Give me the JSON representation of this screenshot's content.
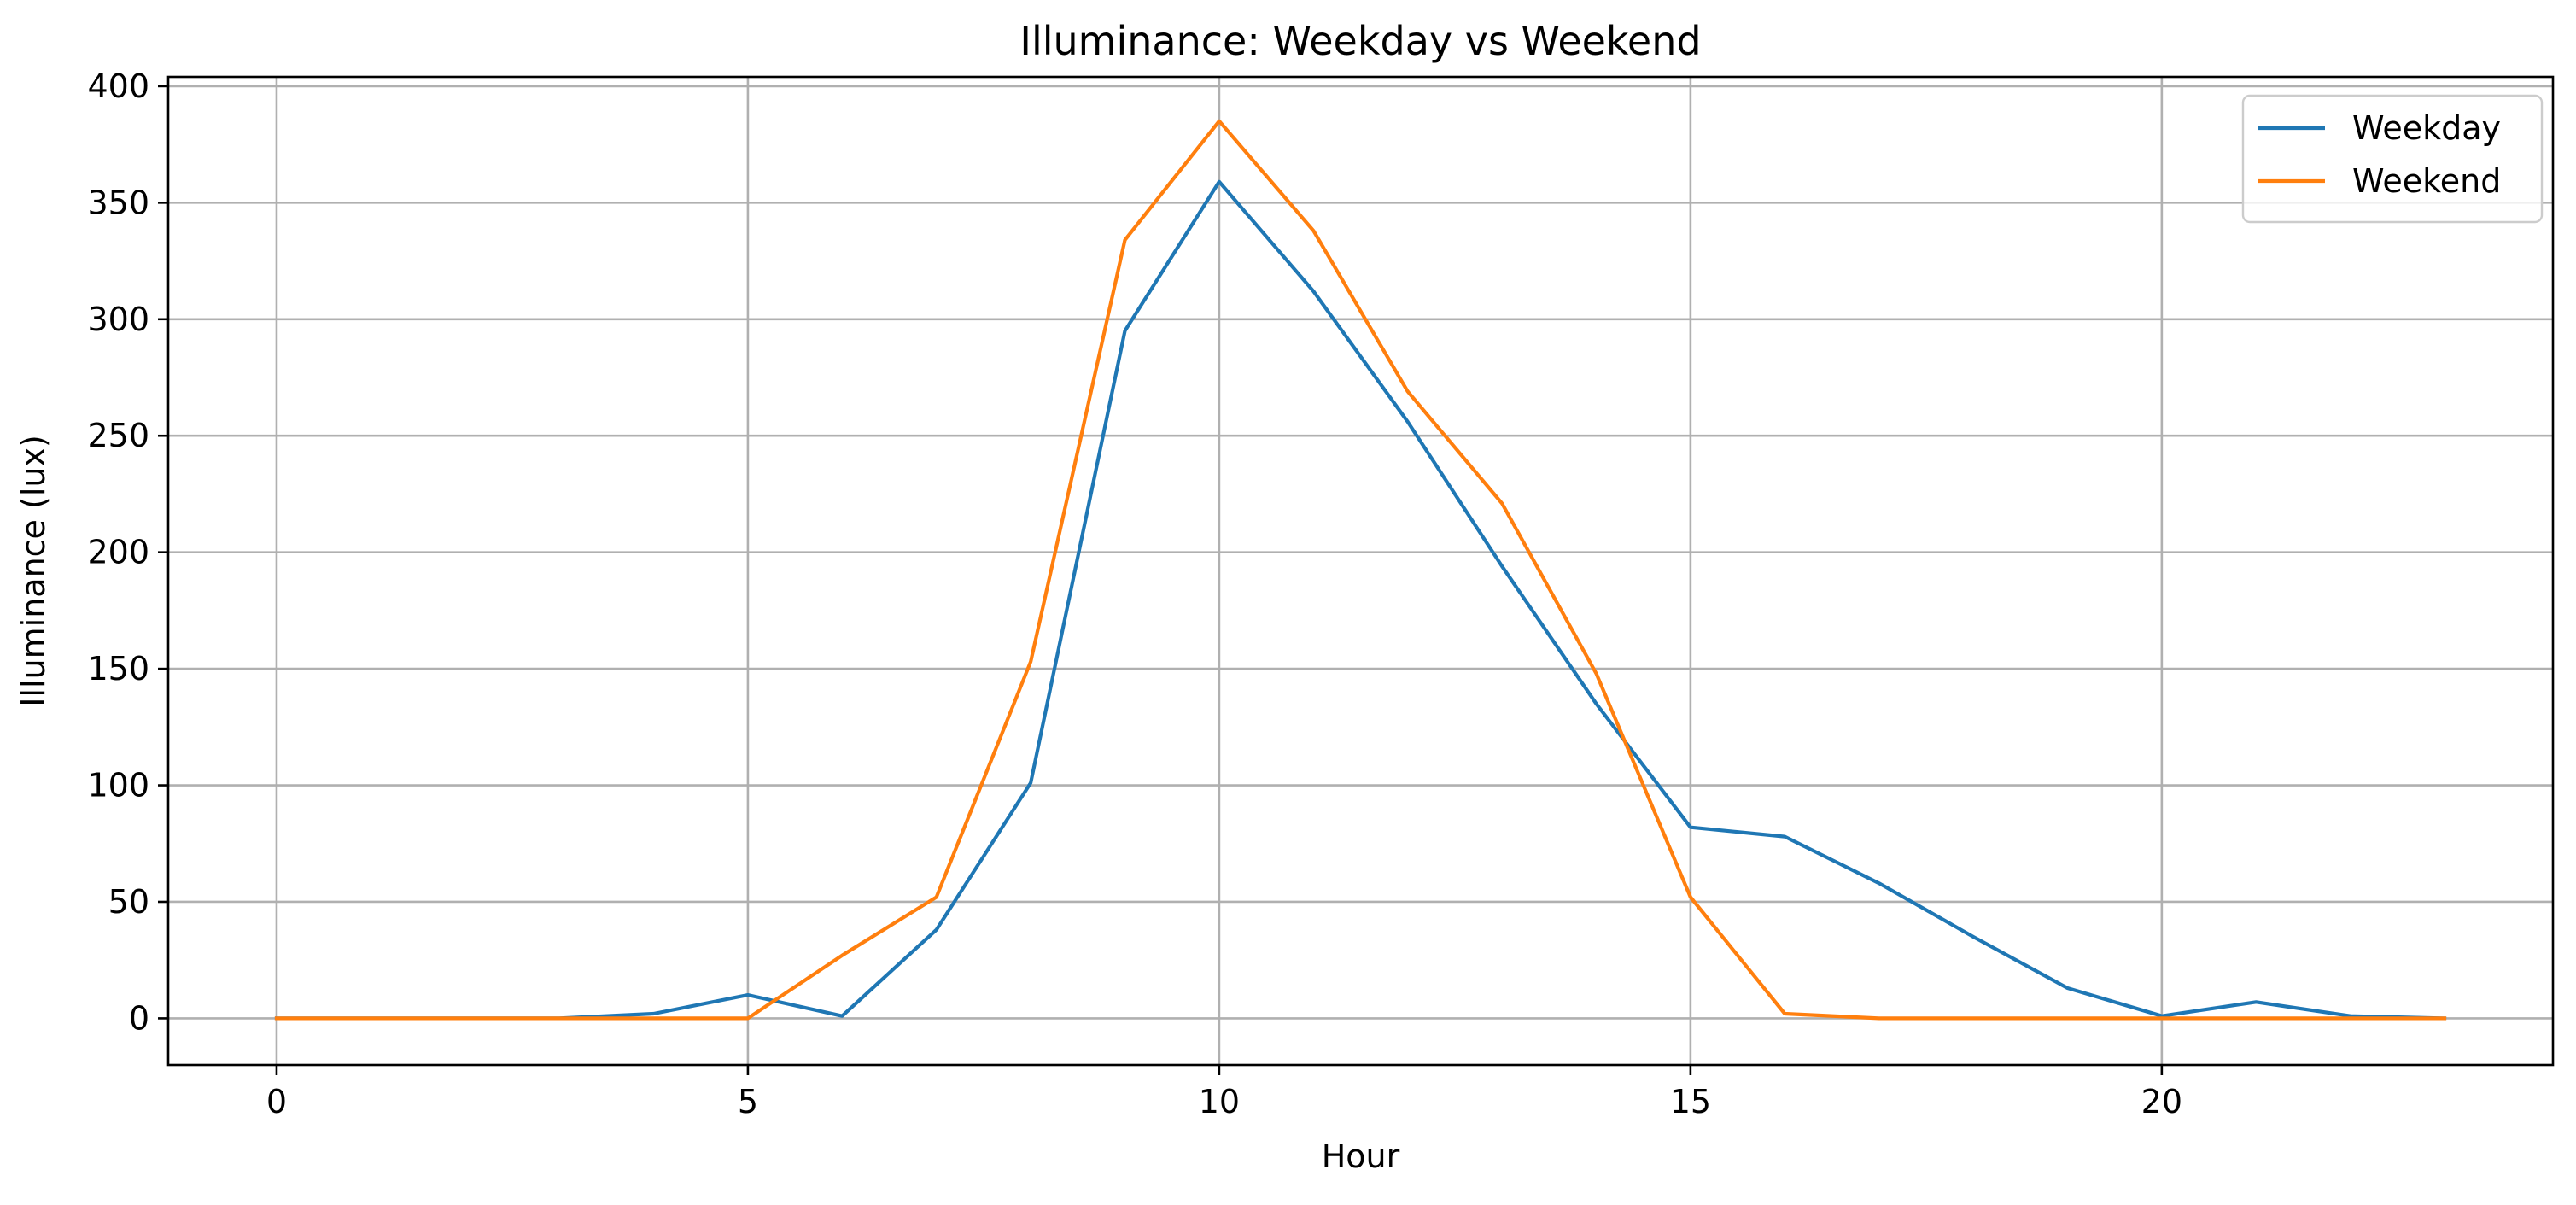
{
  "chart_data": {
    "type": "line",
    "title": "Illuminance: Weekday vs Weekend",
    "xlabel": "Hour",
    "ylabel": "Illuminance (lux)",
    "x": [
      0,
      1,
      2,
      3,
      4,
      5,
      6,
      7,
      8,
      9,
      10,
      11,
      12,
      13,
      14,
      15,
      16,
      17,
      18,
      19,
      20,
      21,
      22,
      23
    ],
    "xlim": [
      -1.15,
      24.15
    ],
    "ylim": [
      -20,
      404
    ],
    "xticks": [
      0,
      5,
      10,
      15,
      20
    ],
    "xtick_labels": [
      "0",
      "5",
      "10",
      "15",
      "20"
    ],
    "yticks": [
      0,
      50,
      100,
      150,
      200,
      250,
      300,
      350,
      400
    ],
    "ytick_labels": [
      "0",
      "50",
      "100",
      "150",
      "200",
      "250",
      "300",
      "350",
      "400"
    ],
    "grid": true,
    "legend": "top-right",
    "series": [
      {
        "name": "Weekday",
        "color": "#1f77b4",
        "values": [
          0,
          0,
          0,
          0,
          2,
          10,
          1,
          38,
          101,
          295,
          359,
          312,
          256,
          194,
          135,
          82,
          78,
          58,
          35,
          13,
          1,
          7,
          1,
          0
        ]
      },
      {
        "name": "Weekend",
        "color": "#ff7f0e",
        "values": [
          0,
          0,
          0,
          0,
          0,
          0,
          27,
          52,
          153,
          334,
          385,
          338,
          269,
          221,
          148,
          52,
          2,
          0,
          0,
          0,
          0,
          0,
          0,
          0
        ]
      }
    ]
  }
}
